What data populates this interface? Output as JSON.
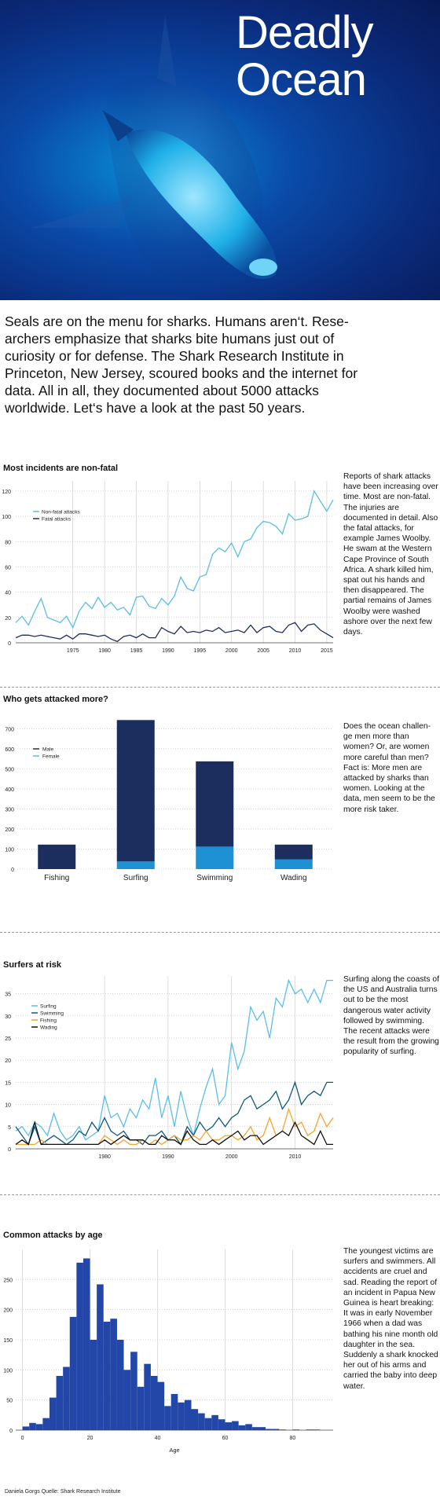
{
  "hero": {
    "title_line1": "Deadly",
    "title_line2": "Ocean"
  },
  "intro": "Seals are on the menu for sharks. Humans aren‘t. Rese-archers emphasize that sharks bite humans just out of curiosity or for defense. The Shark Research Institute in Princeton, New Jersey, scoured books and the internet for data. All in all, they documented about 5000 attacks worldwide. Let‘s have a look at the past 50 years.",
  "credit": "Daniela Gorgs   Quelle: Shark Research Institute",
  "colors": {
    "dark": "#1c2e5e",
    "light": "#5bbde8",
    "fishing": "#f2a531",
    "wading": "#111111",
    "female_bar": "#1e90d4",
    "age_bar": "#2347a8"
  },
  "sections": [
    {
      "title": "Most incidents are non-fatal",
      "text": "Reports of shark attacks have been increasing over time. Most are non-fatal. The injuries are documented in detail. Also the fatal attacks, for example James Woolby. He swam at the Western Cape Province of South Africa. A shark killed him, spat out his hands and then disappeared. The partial remains of James Woolby were washed ashore over the next few days."
    },
    {
      "title": "Who gets attacked more?",
      "text": "Does the ocean challen-ge men more than women? Or, are women more careful than men? Fact is: More men are attacked by sharks than women. Looking at the data, men seem to be the more risk taker."
    },
    {
      "title": "Surfers at risk",
      "text": "Surfing along the coasts of the US and  Australia turns out to be the most dangerous water activity followed by swimming. The recent attacks were the result from the growing popularity of surfing."
    },
    {
      "title": "Common attacks by age",
      "text": "The youngest victims are surfers and swimmers. All accidents are cruel and sad. Reading the report of an incident in Papua New Guinea is heart breaking: It was in early November 1966 when a dad was bathing his nine month old daughter in the sea. Suddenly a shark knocked her out of his arms and carried the baby into deep water."
    }
  ],
  "chart_data": [
    {
      "type": "line",
      "title": "Most incidents are non-fatal",
      "x": [
        1966,
        1967,
        1968,
        1969,
        1970,
        1971,
        1972,
        1973,
        1974,
        1975,
        1976,
        1977,
        1978,
        1979,
        1980,
        1981,
        1982,
        1983,
        1984,
        1985,
        1986,
        1987,
        1988,
        1989,
        1990,
        1991,
        1992,
        1993,
        1994,
        1995,
        1996,
        1997,
        1998,
        1999,
        2000,
        2001,
        2002,
        2003,
        2004,
        2005,
        2006,
        2007,
        2008,
        2009,
        2010,
        2011,
        2012,
        2013,
        2014,
        2015,
        2016
      ],
      "series": [
        {
          "name": "Non-fatal attacks",
          "values": [
            16,
            21,
            14,
            25,
            35,
            20,
            18,
            16,
            21,
            12,
            25,
            32,
            27,
            36,
            28,
            32,
            26,
            28,
            22,
            36,
            37,
            29,
            27,
            35,
            30,
            37,
            52,
            43,
            41,
            52,
            54,
            70,
            75,
            72,
            79,
            68,
            80,
            82,
            91,
            96,
            95,
            92,
            86,
            102,
            97,
            98,
            100,
            120,
            112,
            104,
            113
          ]
        },
        {
          "name": "Fatal attacks",
          "values": [
            4,
            6,
            6,
            5,
            6,
            5,
            4,
            3,
            6,
            3,
            7,
            7,
            6,
            5,
            6,
            3,
            1,
            5,
            6,
            4,
            7,
            4,
            4,
            12,
            9,
            7,
            13,
            8,
            9,
            8,
            10,
            9,
            12,
            8,
            9,
            10,
            8,
            14,
            8,
            12,
            13,
            9,
            8,
            14,
            16,
            9,
            14,
            15,
            10,
            7,
            4
          ]
        }
      ],
      "xticks": [
        1975,
        1980,
        1985,
        1990,
        1995,
        2000,
        2005,
        2010,
        2015
      ],
      "yticks": [
        0,
        20,
        40,
        60,
        80,
        100,
        120
      ],
      "ylim": [
        0,
        128
      ],
      "xlim": [
        1966,
        2016
      ]
    },
    {
      "type": "bar",
      "title": "Who gets attacked more?",
      "categories": [
        "Fishing",
        "Surfing",
        "Swimming",
        "Wading"
      ],
      "series": [
        {
          "name": "Male",
          "values": [
            122,
            705,
            425,
            74
          ]
        },
        {
          "name": "Female",
          "values": [
            0,
            38,
            112,
            48
          ]
        }
      ],
      "stacked": true,
      "yticks": [
        0,
        100,
        200,
        300,
        400,
        500,
        600,
        700
      ],
      "ylim": [
        0,
        760
      ]
    },
    {
      "type": "line",
      "title": "Surfers at risk",
      "x": [
        1966,
        1967,
        1968,
        1969,
        1970,
        1971,
        1972,
        1973,
        1974,
        1975,
        1976,
        1977,
        1978,
        1979,
        1980,
        1981,
        1982,
        1983,
        1984,
        1985,
        1986,
        1987,
        1988,
        1989,
        1990,
        1991,
        1992,
        1993,
        1994,
        1995,
        1996,
        1997,
        1998,
        1999,
        2000,
        2001,
        2002,
        2003,
        2004,
        2005,
        2006,
        2007,
        2008,
        2009,
        2010,
        2011,
        2012,
        2013,
        2014,
        2015,
        2016
      ],
      "series": [
        {
          "name": "Surfing",
          "values": [
            4,
            5,
            3,
            6,
            5,
            3,
            8,
            4,
            2,
            3,
            5,
            2,
            3,
            4,
            12,
            7,
            8,
            5,
            9,
            7,
            11,
            9,
            16,
            7,
            12,
            5,
            13,
            7,
            3,
            9,
            14,
            18,
            10,
            12,
            24,
            18,
            22,
            32,
            29,
            31,
            25,
            34,
            32,
            38,
            35,
            36,
            33,
            36,
            33,
            38,
            38
          ]
        },
        {
          "name": "Swimming",
          "values": [
            5,
            3,
            1,
            5,
            1,
            2,
            3,
            2,
            1,
            2,
            4,
            3,
            6,
            4,
            7,
            4,
            3,
            4,
            2,
            2,
            1,
            3,
            3,
            4,
            2,
            3,
            1,
            5,
            3,
            6,
            4,
            5,
            7,
            5,
            7,
            8,
            11,
            12,
            9,
            10,
            11,
            13,
            9,
            11,
            15,
            10,
            12,
            13,
            12,
            15,
            15
          ]
        },
        {
          "name": "Fishing",
          "values": [
            1,
            1,
            1,
            1,
            2,
            1,
            1,
            1,
            1,
            1,
            1,
            1,
            1,
            1,
            3,
            2,
            1,
            2,
            1,
            1,
            2,
            1,
            2,
            1,
            2,
            3,
            2,
            2,
            3,
            2,
            4,
            2,
            2,
            3,
            3,
            2,
            3,
            5,
            2,
            3,
            7,
            3,
            4,
            9,
            5,
            6,
            3,
            4,
            8,
            5,
            7
          ]
        },
        {
          "name": "Wading",
          "values": [
            1,
            2,
            1,
            6,
            1,
            1,
            1,
            1,
            1,
            1,
            1,
            1,
            1,
            1,
            2,
            1,
            2,
            3,
            2,
            2,
            2,
            1,
            1,
            3,
            2,
            2,
            1,
            4,
            2,
            1,
            1,
            2,
            1,
            2,
            3,
            4,
            2,
            3,
            3,
            1,
            2,
            3,
            4,
            3,
            6,
            3,
            2,
            1,
            4,
            1,
            1
          ]
        }
      ],
      "xticks": [
        1980,
        1990,
        2000,
        2010
      ],
      "yticks": [
        0,
        5,
        10,
        15,
        20,
        25,
        30,
        35
      ],
      "ylim": [
        0,
        39
      ],
      "xlim": [
        1966,
        2016
      ]
    },
    {
      "type": "bar",
      "title": "Common attacks by age",
      "xlabel": "Age",
      "bin_starts": [
        0,
        2,
        4,
        6,
        8,
        10,
        12,
        14,
        16,
        18,
        20,
        22,
        24,
        26,
        28,
        30,
        32,
        34,
        36,
        38,
        40,
        42,
        44,
        46,
        48,
        50,
        52,
        54,
        56,
        58,
        60,
        62,
        64,
        66,
        68,
        70,
        72,
        74,
        76,
        78,
        80,
        82,
        84,
        86
      ],
      "values": [
        6,
        12,
        10,
        20,
        54,
        90,
        105,
        188,
        278,
        285,
        150,
        242,
        180,
        185,
        150,
        100,
        130,
        72,
        110,
        90,
        80,
        40,
        60,
        46,
        50,
        35,
        28,
        20,
        25,
        18,
        13,
        15,
        8,
        10,
        5,
        5,
        2,
        2,
        1,
        0,
        1,
        0,
        1,
        1
      ],
      "xticks": [
        0,
        20,
        40,
        60,
        80
      ],
      "yticks": [
        0,
        50,
        100,
        150,
        200,
        250
      ],
      "xlim": [
        -2,
        92
      ],
      "ylim": [
        0,
        300
      ]
    }
  ]
}
